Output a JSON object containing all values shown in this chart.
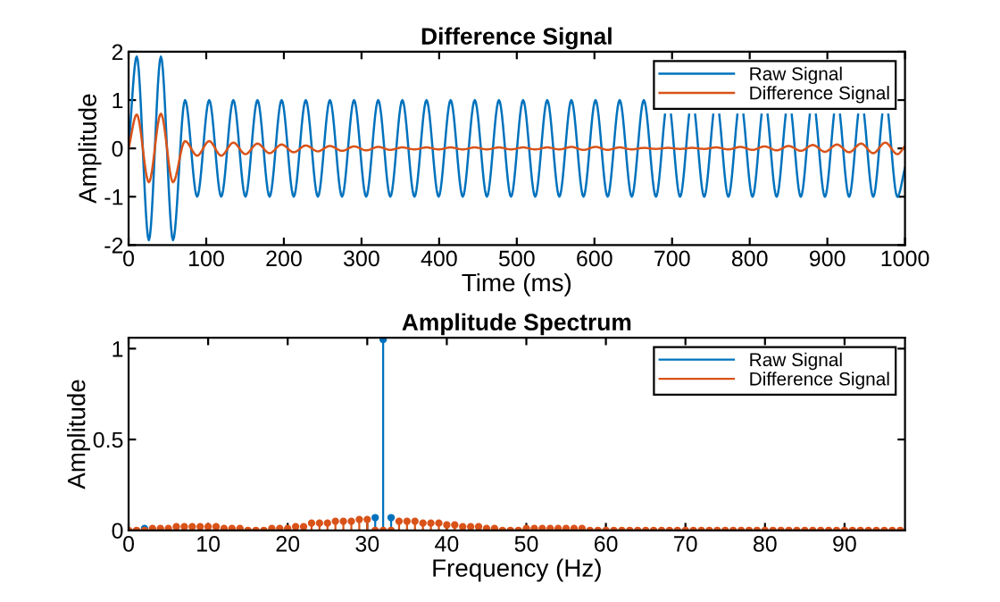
{
  "chart_data": [
    {
      "type": "line",
      "title": "Difference Signal",
      "xlabel": "Time (ms)",
      "ylabel": "Amplitude",
      "x": [
        0,
        10.5,
        26.1,
        41.6,
        57.2,
        72.7,
        88.3,
        103.8,
        119.3,
        134.9,
        150.5,
        166.0,
        181.6,
        197.1,
        212.7,
        228.2,
        243.8,
        259.3,
        274.9,
        290.4,
        306.0,
        321.5,
        337.1,
        352.6,
        368.2,
        383.7,
        399.3,
        414.8,
        430.4,
        445.9,
        461.5,
        477.0,
        492.6,
        508.1,
        523.7,
        539.2,
        554.8,
        570.3,
        585.9,
        601.4,
        617.0,
        632.5,
        648.1,
        663.6,
        679.2,
        694.7,
        710.3,
        725.8,
        741.4,
        756.9,
        772.5,
        788.0,
        803.6,
        819.1,
        834.7,
        850.2,
        865.8,
        881.3,
        896.9,
        912.4,
        928.0,
        943.5,
        959.1,
        974.6,
        990.2,
        1000
      ],
      "series": [
        {
          "name": "Raw Signal",
          "color": "#0072bd",
          "x": [
            0,
            10.5,
            26.1,
            41.6,
            57.2,
            72.7,
            88.3,
            103.8,
            119.3,
            134.9,
            150.5,
            166.0,
            181.6,
            197.1,
            212.7,
            228.2,
            243.8,
            259.3,
            274.9,
            290.4,
            306.0,
            321.5,
            337.1,
            352.6,
            368.2,
            383.7,
            399.3,
            414.8,
            430.4,
            445.9,
            461.5,
            477.0,
            492.6,
            508.1,
            523.7,
            539.2,
            554.8,
            570.3,
            585.9,
            601.4,
            617.0,
            632.5,
            648.1,
            663.6,
            679.2,
            690.8,
            694.7,
            698.6,
            710.3,
            721.9,
            725.8,
            729.7,
            741.4,
            753.0,
            756.9,
            760.8,
            772.5,
            784.1,
            788.0,
            791.9,
            803.6,
            815.2,
            819.1,
            823.0,
            834.7,
            846.3,
            850.2,
            854.1,
            865.8,
            877.4,
            881.3,
            885.2,
            896.9,
            908.5,
            912.4,
            916.3,
            928.0,
            939.6,
            943.5,
            947.4,
            959.1,
            970.7,
            974.6,
            978.5,
            990.2,
            1000
          ],
          "values": [
            0,
            1.9,
            -1.9,
            1.9,
            -1.9,
            1,
            -1,
            1,
            -1,
            1,
            -1,
            1,
            -1,
            1,
            -1,
            1,
            -1,
            1,
            -1,
            1,
            -1,
            1,
            -1,
            1,
            -1,
            1,
            -1,
            1,
            -1,
            1,
            -1,
            1,
            -1,
            1,
            -1,
            1,
            -1,
            1,
            -1,
            1,
            -1,
            1,
            -1,
            1,
            -1,
            0.7,
            null,
            0.7,
            -1,
            0.7,
            null,
            0.7,
            -1,
            0.7,
            null,
            0.7,
            -1,
            0.7,
            null,
            0.7,
            -1,
            0.7,
            null,
            0.7,
            -1,
            0.7,
            null,
            0.7,
            -1,
            0.7,
            null,
            0.7,
            -1,
            0.7,
            null,
            0.7,
            -1,
            0.7,
            null,
            0.7,
            -1,
            0.7,
            null,
            0.7,
            -1,
            -0.4
          ]
        },
        {
          "name": "Difference Signal",
          "color": "#d95319",
          "values": [
            0,
            0.7,
            -0.7,
            0.72,
            -0.7,
            0.15,
            -0.15,
            0.15,
            -0.15,
            0.12,
            -0.12,
            0.1,
            -0.1,
            0.08,
            -0.08,
            0.06,
            -0.06,
            0.05,
            -0.05,
            0.04,
            -0.04,
            0.03,
            -0.03,
            0.02,
            -0.02,
            0.02,
            -0.02,
            0.02,
            -0.02,
            0.02,
            -0.02,
            0.02,
            -0.02,
            0.02,
            -0.02,
            0.02,
            -0.02,
            0.03,
            -0.03,
            0.03,
            -0.03,
            0.02,
            -0.02,
            0.01,
            -0.01,
            0.01,
            -0.01,
            0.01,
            -0.01,
            0.02,
            -0.02,
            0.03,
            -0.03,
            0.04,
            -0.04,
            0.05,
            -0.05,
            0.07,
            -0.07,
            0.08,
            -0.08,
            0.1,
            -0.1,
            0.12,
            -0.12,
            0.05
          ]
        }
      ],
      "xlim": [
        0,
        1000
      ],
      "xticks": [
        0,
        100,
        200,
        300,
        400,
        500,
        600,
        700,
        800,
        900,
        1000
      ],
      "ylim": [
        -2,
        2
      ],
      "yticks": [
        -2,
        -1,
        0,
        1,
        2
      ],
      "legend": "top right",
      "line_style": "solid",
      "grid": false
    },
    {
      "type": "lollipop",
      "title": "Amplitude Spectrum",
      "xlabel": "Frequency (Hz)",
      "ylabel": "Amplitude",
      "x": [
        0,
        1,
        2,
        3,
        4,
        5,
        6,
        7,
        8,
        9,
        10,
        11,
        12,
        13,
        14,
        15,
        16,
        17,
        18,
        19,
        20,
        21,
        22,
        23,
        24,
        25,
        26,
        27,
        28,
        29,
        30,
        31,
        32,
        33,
        34,
        35,
        36,
        37,
        38,
        39,
        40,
        41,
        42,
        43,
        44,
        45,
        46,
        47,
        48,
        49,
        50,
        51,
        52,
        53,
        54,
        55,
        56,
        57,
        58,
        59,
        60,
        61,
        62,
        63,
        64,
        65,
        66,
        67,
        68,
        69,
        70,
        71,
        72,
        73,
        74,
        75,
        76,
        77,
        78,
        79,
        80,
        81,
        82,
        83,
        84,
        85,
        86,
        87,
        88,
        89,
        90,
        91,
        92,
        93,
        94,
        95,
        96,
        97
      ],
      "series": [
        {
          "name": "Raw Signal",
          "color": "#0072bd",
          "values": [
            null,
            null,
            0.01,
            null,
            null,
            null,
            null,
            null,
            null,
            null,
            null,
            null,
            null,
            null,
            null,
            null,
            null,
            null,
            null,
            null,
            null,
            null,
            null,
            null,
            null,
            null,
            null,
            null,
            null,
            null,
            null,
            0.07,
            1.05,
            0.07,
            null,
            null,
            null,
            null,
            null,
            null,
            null,
            null,
            null,
            null,
            null,
            null,
            null,
            null,
            null,
            null,
            null,
            null,
            null,
            null,
            null,
            null,
            null,
            null,
            null,
            null,
            null,
            null,
            null,
            null,
            null,
            null,
            null,
            null,
            null,
            null,
            null,
            null,
            null,
            null,
            null,
            null,
            null,
            null,
            null,
            null,
            null,
            null,
            null,
            null,
            null,
            null,
            null,
            null,
            null,
            null,
            null,
            null,
            null,
            null,
            null,
            null,
            null,
            null
          ]
        },
        {
          "name": "Difference Signal",
          "color": "#d95319",
          "values": [
            0,
            0,
            0,
            0.01,
            0.01,
            0.01,
            0.02,
            0.02,
            0.02,
            0.02,
            0.02,
            0.02,
            0.01,
            0.01,
            0.01,
            0,
            0,
            0,
            0.01,
            0.01,
            0.01,
            0.02,
            0.02,
            0.04,
            0.04,
            0.04,
            0.05,
            0.05,
            0.05,
            0.06,
            0.06,
            0,
            0,
            0,
            0.05,
            0.05,
            0.05,
            0.04,
            0.04,
            0.04,
            0.03,
            0.03,
            0.02,
            0.02,
            0.02,
            0.01,
            0.01,
            0,
            0,
            0,
            0.01,
            0.01,
            0.01,
            0.01,
            0.01,
            0.01,
            0.01,
            0.01,
            0,
            0,
            0,
            0,
            0,
            0,
            0,
            0,
            0,
            0,
            0,
            0,
            0,
            0,
            0,
            0,
            0,
            0,
            0,
            0,
            0,
            0,
            0,
            0,
            0,
            0,
            0,
            0,
            0,
            0,
            0,
            0,
            0,
            0,
            0,
            0,
            0,
            0,
            0,
            0
          ]
        }
      ],
      "xlim": [
        0,
        97.6
      ],
      "xticks": [
        0,
        10,
        20,
        30,
        40,
        50,
        60,
        70,
        80,
        90
      ],
      "ylim": [
        0,
        1.06
      ],
      "yticks": [
        0,
        0.5,
        1
      ],
      "legend": "top right",
      "marker": "circle",
      "grid": false
    }
  ]
}
